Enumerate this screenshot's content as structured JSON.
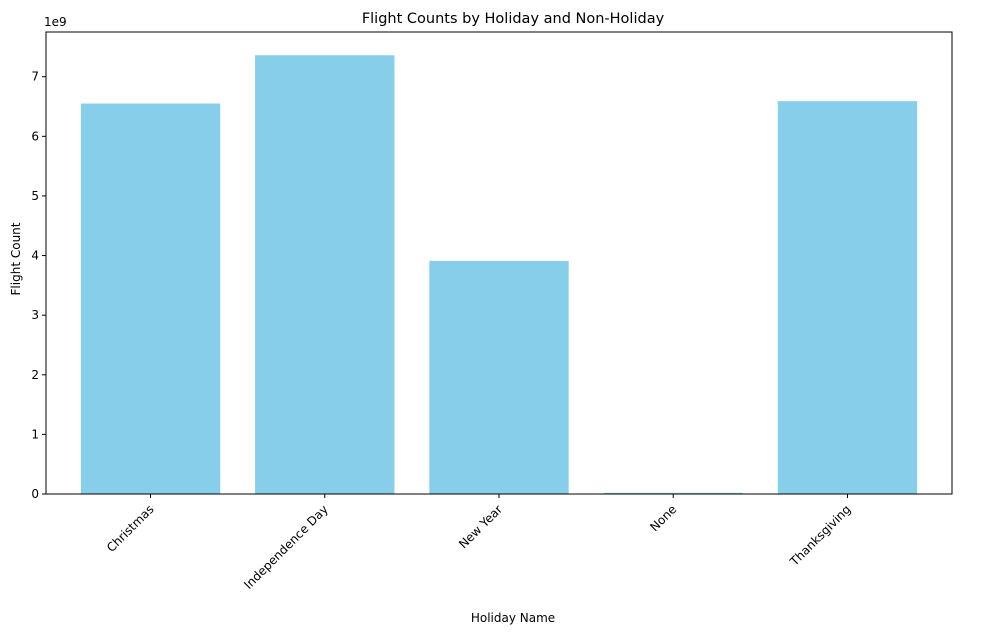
{
  "chart_data": {
    "type": "bar",
    "title": "Flight Counts by Holiday and Non-Holiday",
    "xlabel": "Holiday Name",
    "ylabel": "Flight Count",
    "offset_label": "1e9",
    "categories": [
      "Christmas",
      "Independence Day",
      "New Year",
      "None",
      "Thanksgiving"
    ],
    "values": [
      6.55,
      7.36,
      3.91,
      0.02,
      6.59
    ],
    "value_scale": 1000000000,
    "ylim": [
      0,
      7.75
    ],
    "yticks": [
      0,
      1,
      2,
      3,
      4,
      5,
      6,
      7
    ],
    "grid": false,
    "colors": {
      "bar": "#87ceeb",
      "axis": "#000000",
      "text": "#000000",
      "background": "#ffffff"
    }
  }
}
